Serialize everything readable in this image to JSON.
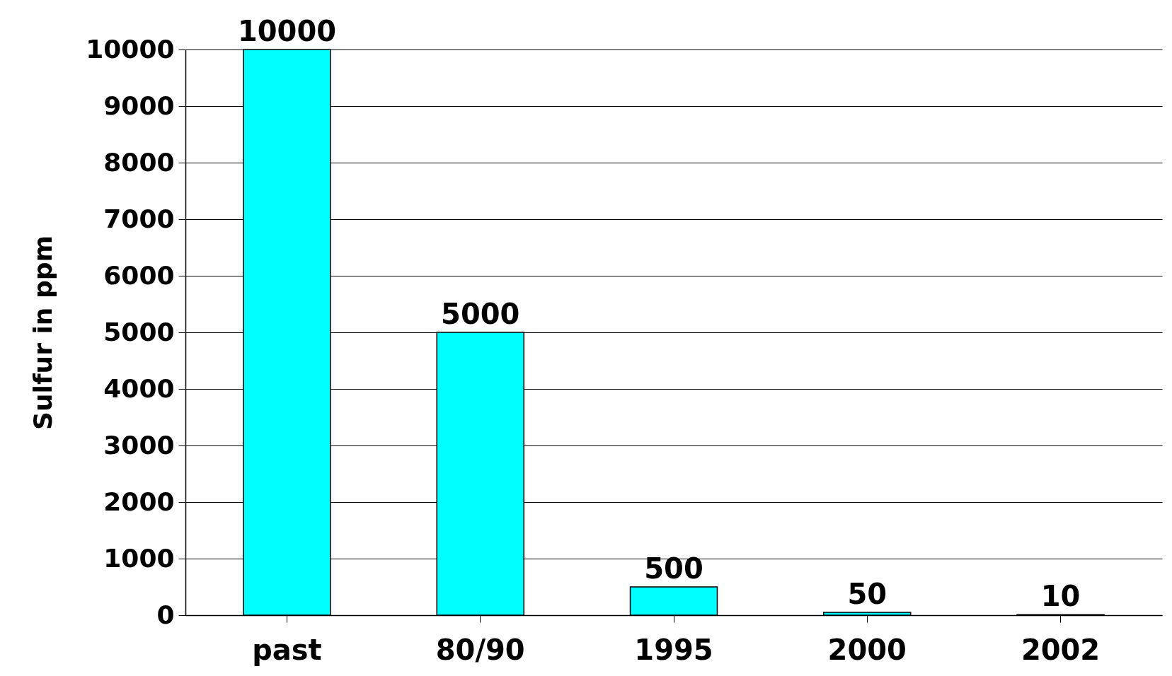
{
  "chart_data": {
    "type": "bar",
    "ylabel": "Sulfur in ppm",
    "categories": [
      "past",
      "80/90",
      "1995",
      "2000",
      "2002"
    ],
    "values": [
      10000,
      5000,
      500,
      50,
      10
    ],
    "color": "#00ffff",
    "ylim": [
      0,
      10000
    ],
    "yticks": [
      0,
      1000,
      2000,
      3000,
      4000,
      5000,
      6000,
      7000,
      8000,
      9000,
      10000
    ],
    "grid": "y",
    "data_labels": true
  }
}
